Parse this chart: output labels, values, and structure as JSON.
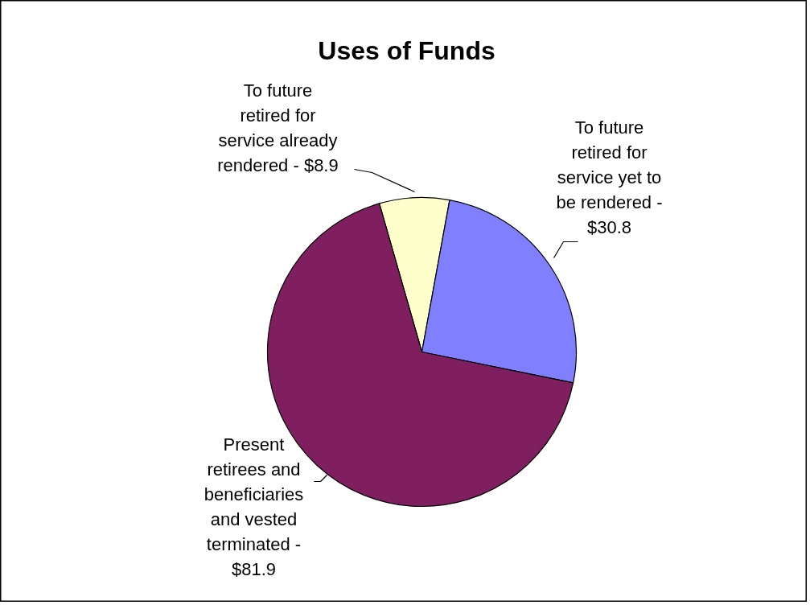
{
  "chart_data": {
    "type": "pie",
    "title": "Uses of Funds",
    "categories": [
      "To future retired for service already rendered -",
      "To future retired for service yet to be rendered -",
      "Present retirees and beneficiaries and vested terminated -"
    ],
    "values": [
      8.9,
      30.8,
      81.9
    ],
    "value_labels": [
      "$8.9",
      "$30.8",
      "$81.9"
    ],
    "colors": [
      "#ffffcc",
      "#8080ff",
      "#7f1f5f"
    ]
  }
}
